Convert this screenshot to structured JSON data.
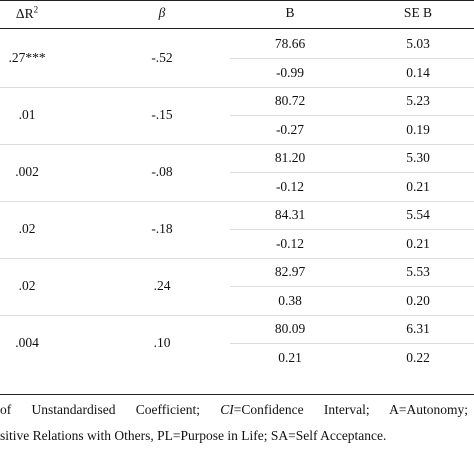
{
  "table": {
    "header": {
      "delta_r2": {
        "base": "ΔR",
        "sup": "2"
      },
      "beta": "β",
      "b": "B",
      "se_b": "SE B"
    },
    "rows": [
      {
        "delta_r2": ".27***",
        "beta": "-.52",
        "b": [
          "78.66",
          "-0.99"
        ],
        "se_b": [
          "5.03",
          "0.14"
        ]
      },
      {
        "delta_r2": ".01",
        "beta": "-.15",
        "b": [
          "80.72",
          "-0.27"
        ],
        "se_b": [
          "5.23",
          "0.19"
        ]
      },
      {
        "delta_r2": ".002",
        "beta": "-.08",
        "b": [
          "81.20",
          "-0.12"
        ],
        "se_b": [
          "5.30",
          "0.21"
        ]
      },
      {
        "delta_r2": ".02",
        "beta": "-.18",
        "b": [
          "84.31",
          "-0.12"
        ],
        "se_b": [
          "5.54",
          "0.21"
        ]
      },
      {
        "delta_r2": ".02",
        "beta": ".24",
        "b": [
          "82.97",
          "0.38"
        ],
        "se_b": [
          "5.53",
          "0.20"
        ]
      },
      {
        "delta_r2": ".004",
        "beta": ".10",
        "b": [
          "80.09",
          "0.21"
        ],
        "se_b": [
          "6.31",
          "0.22"
        ]
      }
    ]
  },
  "footnote": {
    "line1": [
      "of Unstandardised Coefficient; ",
      "CI",
      "=Confidence Interval; A=Autonomy;"
    ],
    "line2": "sitive Relations with Others, PL=Purpose in Life; SA=Self Acceptance."
  }
}
